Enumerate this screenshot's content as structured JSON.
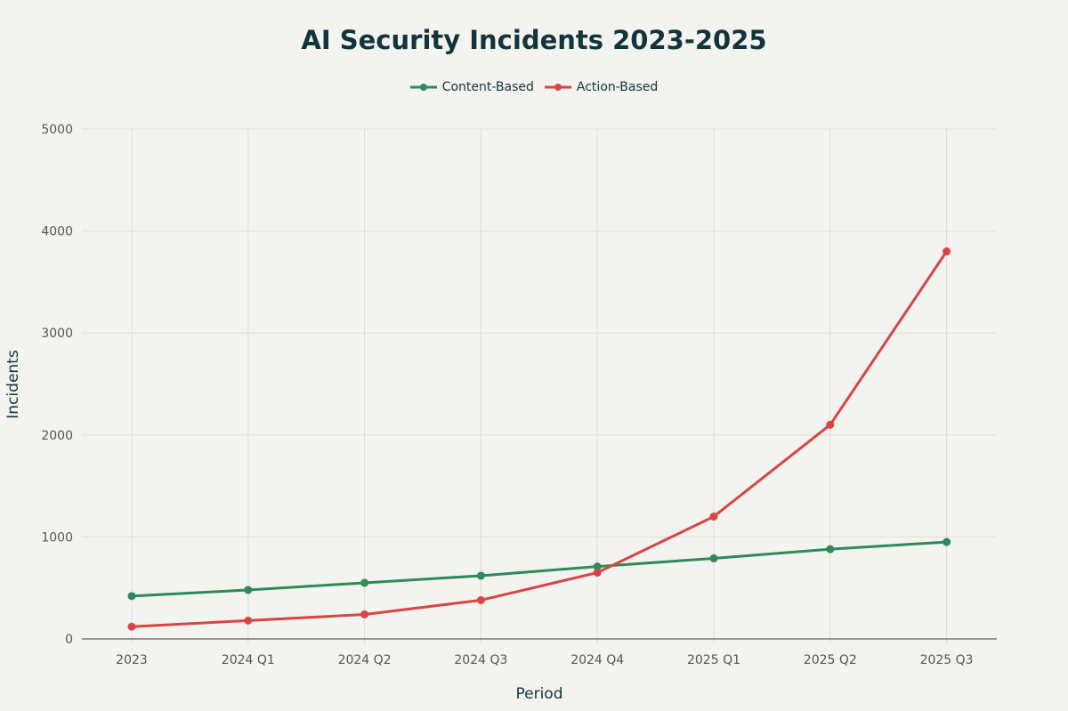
{
  "chart_data": {
    "type": "line",
    "title": "AI Security Incidents 2023-2025",
    "xlabel": "Period",
    "ylabel": "Incidents",
    "categories": [
      "2023",
      "2024 Q1",
      "2024 Q2",
      "2024 Q3",
      "2024 Q4",
      "2025 Q1",
      "2025 Q2",
      "2025 Q3"
    ],
    "ylim": [
      0,
      5000
    ],
    "yticks": [
      0,
      1000,
      2000,
      3000,
      4000,
      5000
    ],
    "grid": true,
    "legend_position": "top-center",
    "series": [
      {
        "name": "Content-Based",
        "color": "#2e8b57",
        "values": [
          420,
          480,
          550,
          620,
          710,
          790,
          880,
          950
        ]
      },
      {
        "name": "Action-Based",
        "color": "#d94545",
        "values": [
          120,
          180,
          240,
          380,
          650,
          1200,
          2100,
          3800
        ]
      }
    ]
  }
}
